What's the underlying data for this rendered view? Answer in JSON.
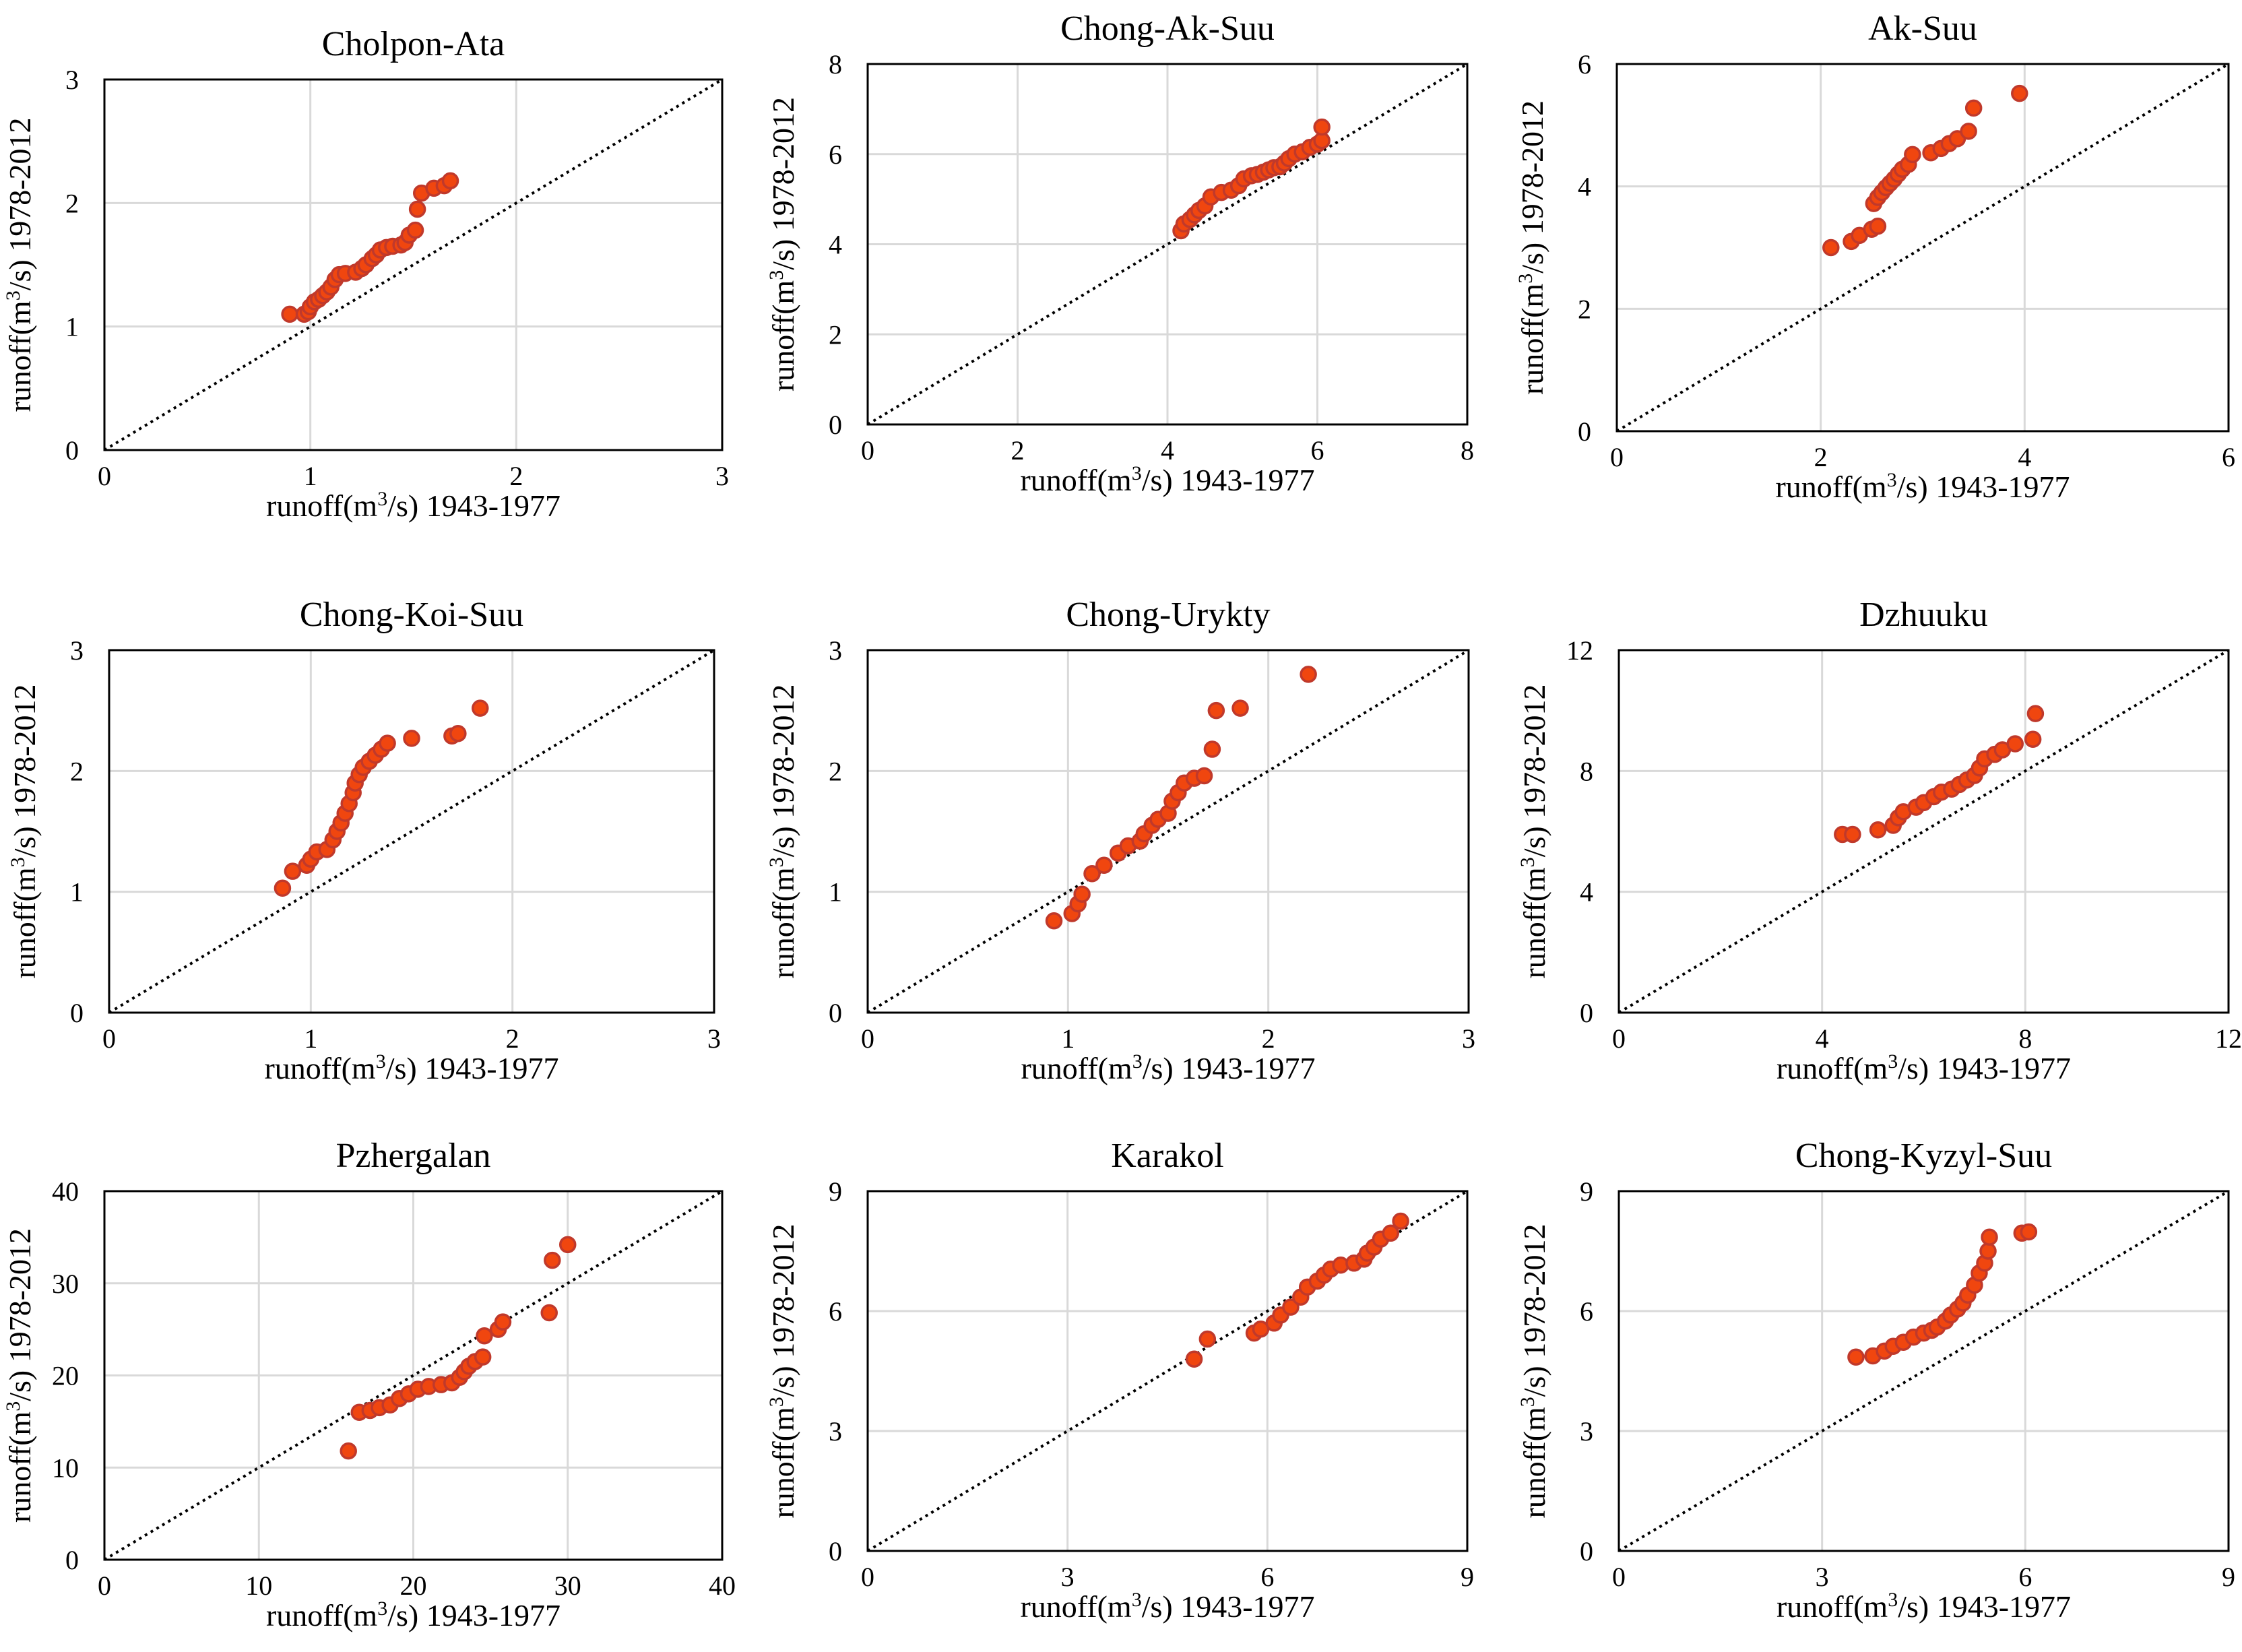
{
  "colors": {
    "point_fill": "#f0460f",
    "point_stroke": "#c0392b",
    "grid": "#d9d9d9",
    "axis": "#000000"
  },
  "chart_data": [
    {
      "type": "scatter",
      "title": "Cholpon-Ata",
      "xlabel": "runoff(m3/s) 1943-1977",
      "ylabel": "runoff(m3/s) 1978-2012",
      "xlim": [
        0,
        3
      ],
      "ylim": [
        0,
        3
      ],
      "xticks": [
        0,
        1,
        2,
        3
      ],
      "yticks": [
        0,
        1,
        2,
        3
      ],
      "grid": true,
      "one_to_one_line": true,
      "points": [
        [
          0.9,
          1.1
        ],
        [
          0.97,
          1.1
        ],
        [
          0.99,
          1.12
        ],
        [
          1.0,
          1.16
        ],
        [
          1.02,
          1.2
        ],
        [
          1.04,
          1.22
        ],
        [
          1.06,
          1.25
        ],
        [
          1.08,
          1.28
        ],
        [
          1.1,
          1.32
        ],
        [
          1.12,
          1.38
        ],
        [
          1.14,
          1.42
        ],
        [
          1.17,
          1.43
        ],
        [
          1.22,
          1.44
        ],
        [
          1.25,
          1.47
        ],
        [
          1.27,
          1.5
        ],
        [
          1.3,
          1.55
        ],
        [
          1.32,
          1.58
        ],
        [
          1.34,
          1.62
        ],
        [
          1.37,
          1.64
        ],
        [
          1.4,
          1.65
        ],
        [
          1.44,
          1.66
        ],
        [
          1.46,
          1.68
        ],
        [
          1.48,
          1.74
        ],
        [
          1.51,
          1.78
        ],
        [
          1.52,
          1.95
        ],
        [
          1.54,
          2.08
        ],
        [
          1.6,
          2.12
        ],
        [
          1.65,
          2.14
        ],
        [
          1.68,
          2.18
        ]
      ]
    },
    {
      "type": "scatter",
      "title": "Chong-Ak-Suu",
      "xlabel": "runoff(m3/s) 1943-1977",
      "ylabel": "runoff(m3/s) 1978-2012",
      "xlim": [
        0,
        8
      ],
      "ylim": [
        0,
        8
      ],
      "xticks": [
        0,
        2,
        4,
        6,
        8
      ],
      "yticks": [
        0,
        2,
        4,
        6,
        8
      ],
      "grid": true,
      "one_to_one_line": true,
      "points": [
        [
          4.18,
          4.3
        ],
        [
          4.22,
          4.45
        ],
        [
          4.3,
          4.55
        ],
        [
          4.36,
          4.65
        ],
        [
          4.42,
          4.75
        ],
        [
          4.5,
          4.85
        ],
        [
          4.58,
          5.05
        ],
        [
          4.72,
          5.15
        ],
        [
          4.85,
          5.2
        ],
        [
          4.95,
          5.3
        ],
        [
          5.02,
          5.45
        ],
        [
          5.12,
          5.52
        ],
        [
          5.2,
          5.55
        ],
        [
          5.28,
          5.6
        ],
        [
          5.35,
          5.65
        ],
        [
          5.42,
          5.7
        ],
        [
          5.5,
          5.72
        ],
        [
          5.56,
          5.8
        ],
        [
          5.62,
          5.9
        ],
        [
          5.7,
          6.0
        ],
        [
          5.8,
          6.05
        ],
        [
          5.9,
          6.15
        ],
        [
          6.0,
          6.22
        ],
        [
          6.06,
          6.3
        ],
        [
          6.06,
          6.6
        ]
      ]
    },
    {
      "type": "scatter",
      "title": "Ak-Suu",
      "xlabel": "runoff(m3/s) 1943-1977",
      "ylabel": "runoff(m3/s) 1978-2012",
      "xlim": [
        0,
        6
      ],
      "ylim": [
        0,
        6
      ],
      "xticks": [
        0,
        2,
        4,
        6
      ],
      "yticks": [
        0,
        2,
        4,
        6
      ],
      "grid": true,
      "one_to_one_line": true,
      "points": [
        [
          2.1,
          3.0
        ],
        [
          2.3,
          3.1
        ],
        [
          2.38,
          3.2
        ],
        [
          2.5,
          3.3
        ],
        [
          2.56,
          3.35
        ],
        [
          2.52,
          3.72
        ],
        [
          2.56,
          3.82
        ],
        [
          2.6,
          3.9
        ],
        [
          2.64,
          3.98
        ],
        [
          2.68,
          4.05
        ],
        [
          2.72,
          4.12
        ],
        [
          2.76,
          4.2
        ],
        [
          2.8,
          4.28
        ],
        [
          2.86,
          4.36
        ],
        [
          2.9,
          4.52
        ],
        [
          3.08,
          4.55
        ],
        [
          3.18,
          4.62
        ],
        [
          3.26,
          4.7
        ],
        [
          3.34,
          4.78
        ],
        [
          3.45,
          4.9
        ],
        [
          3.5,
          5.28
        ],
        [
          3.95,
          5.52
        ]
      ]
    },
    {
      "type": "scatter",
      "title": "Chong-Koi-Suu",
      "xlabel": "runoff(m3/s) 1943-1977",
      "ylabel": "runoff(m3/s) 1978-2012",
      "xlim": [
        0,
        3
      ],
      "ylim": [
        0,
        3
      ],
      "xticks": [
        0,
        1,
        2,
        3
      ],
      "yticks": [
        0,
        1,
        2,
        3
      ],
      "grid": true,
      "one_to_one_line": true,
      "points": [
        [
          0.86,
          1.03
        ],
        [
          0.91,
          1.17
        ],
        [
          0.98,
          1.22
        ],
        [
          1.0,
          1.27
        ],
        [
          1.03,
          1.33
        ],
        [
          1.08,
          1.35
        ],
        [
          1.11,
          1.43
        ],
        [
          1.13,
          1.5
        ],
        [
          1.15,
          1.57
        ],
        [
          1.17,
          1.65
        ],
        [
          1.19,
          1.73
        ],
        [
          1.21,
          1.82
        ],
        [
          1.22,
          1.9
        ],
        [
          1.24,
          1.97
        ],
        [
          1.26,
          2.03
        ],
        [
          1.29,
          2.08
        ],
        [
          1.32,
          2.13
        ],
        [
          1.35,
          2.18
        ],
        [
          1.38,
          2.23
        ],
        [
          1.5,
          2.27
        ],
        [
          1.7,
          2.29
        ],
        [
          1.73,
          2.31
        ],
        [
          1.84,
          2.52
        ]
      ]
    },
    {
      "type": "scatter",
      "title": "Chong-Urykty",
      "xlabel": "runoff(m3/s) 1943-1977",
      "ylabel": "runoff(m3/s) 1978-2012",
      "xlim": [
        0,
        3
      ],
      "ylim": [
        0,
        3
      ],
      "xticks": [
        0,
        1,
        2,
        3
      ],
      "yticks": [
        0,
        1,
        2,
        3
      ],
      "grid": true,
      "one_to_one_line": true,
      "points": [
        [
          0.93,
          0.76
        ],
        [
          1.02,
          0.82
        ],
        [
          1.05,
          0.9
        ],
        [
          1.07,
          0.98
        ],
        [
          1.12,
          1.15
        ],
        [
          1.18,
          1.22
        ],
        [
          1.25,
          1.32
        ],
        [
          1.3,
          1.38
        ],
        [
          1.36,
          1.42
        ],
        [
          1.38,
          1.48
        ],
        [
          1.42,
          1.55
        ],
        [
          1.45,
          1.6
        ],
        [
          1.5,
          1.65
        ],
        [
          1.52,
          1.75
        ],
        [
          1.55,
          1.82
        ],
        [
          1.58,
          1.9
        ],
        [
          1.63,
          1.94
        ],
        [
          1.68,
          1.96
        ],
        [
          1.72,
          2.18
        ],
        [
          1.74,
          2.5
        ],
        [
          1.86,
          2.52
        ],
        [
          2.2,
          2.8
        ]
      ]
    },
    {
      "type": "scatter",
      "title": "Dzhuuku",
      "xlabel": "runoff(m3/s) 1943-1977",
      "ylabel": "runoff(m3/s) 1978-2012",
      "xlim": [
        0,
        12
      ],
      "ylim": [
        0,
        12
      ],
      "xticks": [
        0,
        4,
        8,
        12
      ],
      "yticks": [
        0,
        4,
        8,
        12
      ],
      "grid": true,
      "one_to_one_line": true,
      "points": [
        [
          4.4,
          5.9
        ],
        [
          4.6,
          5.9
        ],
        [
          5.1,
          6.05
        ],
        [
          5.4,
          6.2
        ],
        [
          5.5,
          6.45
        ],
        [
          5.6,
          6.65
        ],
        [
          5.85,
          6.8
        ],
        [
          6.0,
          6.95
        ],
        [
          6.2,
          7.15
        ],
        [
          6.35,
          7.3
        ],
        [
          6.55,
          7.4
        ],
        [
          6.7,
          7.55
        ],
        [
          6.85,
          7.7
        ],
        [
          7.0,
          7.85
        ],
        [
          7.1,
          8.1
        ],
        [
          7.2,
          8.4
        ],
        [
          7.4,
          8.55
        ],
        [
          7.55,
          8.7
        ],
        [
          7.8,
          8.9
        ],
        [
          8.15,
          9.05
        ],
        [
          8.2,
          9.9
        ]
      ]
    },
    {
      "type": "scatter",
      "title": "Pzhergalan",
      "xlabel": "runoff(m3/s) 1943-1977",
      "ylabel": "runoff(m3/s) 1978-2012",
      "xlim": [
        0,
        40
      ],
      "ylim": [
        0,
        40
      ],
      "xticks": [
        0,
        10,
        20,
        30,
        40
      ],
      "yticks": [
        0,
        10,
        20,
        30,
        40
      ],
      "grid": true,
      "one_to_one_line": true,
      "points": [
        [
          15.8,
          11.8
        ],
        [
          16.5,
          16.0
        ],
        [
          17.2,
          16.2
        ],
        [
          17.8,
          16.5
        ],
        [
          18.5,
          16.8
        ],
        [
          19.1,
          17.5
        ],
        [
          19.7,
          18.0
        ],
        [
          20.3,
          18.5
        ],
        [
          21.0,
          18.8
        ],
        [
          21.8,
          19.0
        ],
        [
          22.5,
          19.2
        ],
        [
          23.0,
          19.8
        ],
        [
          23.3,
          20.4
        ],
        [
          23.6,
          21.0
        ],
        [
          24.0,
          21.5
        ],
        [
          24.5,
          22.0
        ],
        [
          24.6,
          24.3
        ],
        [
          25.5,
          25.0
        ],
        [
          25.8,
          25.8
        ],
        [
          28.8,
          26.8
        ],
        [
          29.0,
          32.5
        ],
        [
          30.0,
          34.2
        ]
      ]
    },
    {
      "type": "scatter",
      "title": "Karakol",
      "xlabel": "runoff(m3/s) 1943-1977",
      "ylabel": "runoff(m3/s) 1978-2012",
      "xlim": [
        0,
        9
      ],
      "ylim": [
        0,
        9
      ],
      "xticks": [
        0,
        3,
        6,
        9
      ],
      "yticks": [
        0,
        3,
        6,
        9
      ],
      "grid": true,
      "one_to_one_line": true,
      "points": [
        [
          4.9,
          4.8
        ],
        [
          5.1,
          5.3
        ],
        [
          5.8,
          5.45
        ],
        [
          5.9,
          5.55
        ],
        [
          6.1,
          5.7
        ],
        [
          6.2,
          5.9
        ],
        [
          6.35,
          6.1
        ],
        [
          6.5,
          6.35
        ],
        [
          6.6,
          6.6
        ],
        [
          6.75,
          6.75
        ],
        [
          6.85,
          6.9
        ],
        [
          6.95,
          7.05
        ],
        [
          7.1,
          7.15
        ],
        [
          7.3,
          7.2
        ],
        [
          7.45,
          7.3
        ],
        [
          7.5,
          7.45
        ],
        [
          7.6,
          7.6
        ],
        [
          7.7,
          7.8
        ],
        [
          7.85,
          7.95
        ],
        [
          8.0,
          8.25
        ]
      ]
    },
    {
      "type": "scatter",
      "title": "Chong-Kyzyl-Suu",
      "xlabel": "runoff(m3/s) 1943-1977",
      "ylabel": "runoff(m3/s) 1978-2012",
      "xlim": [
        0,
        9
      ],
      "ylim": [
        0,
        9
      ],
      "xticks": [
        0,
        3,
        6,
        9
      ],
      "yticks": [
        0,
        3,
        6,
        9
      ],
      "grid": true,
      "one_to_one_line": true,
      "points": [
        [
          3.5,
          4.85
        ],
        [
          3.75,
          4.88
        ],
        [
          3.92,
          5.0
        ],
        [
          4.05,
          5.12
        ],
        [
          4.2,
          5.22
        ],
        [
          4.35,
          5.35
        ],
        [
          4.5,
          5.45
        ],
        [
          4.62,
          5.52
        ],
        [
          4.7,
          5.6
        ],
        [
          4.82,
          5.75
        ],
        [
          4.9,
          5.9
        ],
        [
          5.0,
          6.05
        ],
        [
          5.08,
          6.2
        ],
        [
          5.15,
          6.4
        ],
        [
          5.25,
          6.65
        ],
        [
          5.32,
          6.95
        ],
        [
          5.4,
          7.2
        ],
        [
          5.45,
          7.5
        ],
        [
          5.47,
          7.85
        ],
        [
          5.95,
          7.95
        ],
        [
          6.05,
          7.98
        ]
      ]
    }
  ]
}
